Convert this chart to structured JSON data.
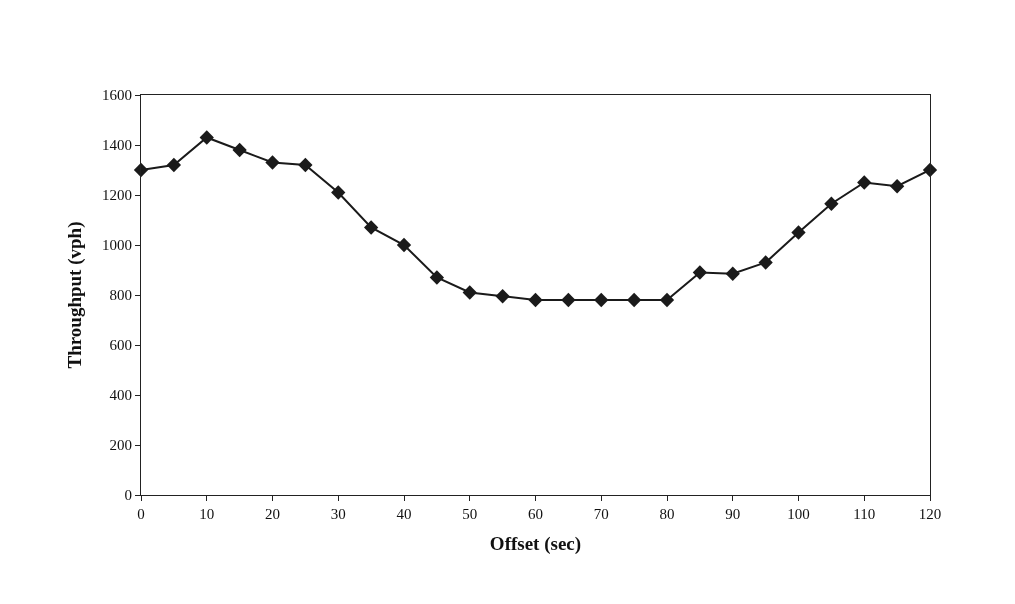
{
  "chart_data": {
    "type": "line",
    "xlabel": "Offset (sec)",
    "ylabel": "Throughput (vph)",
    "x": [
      0,
      5,
      10,
      15,
      20,
      25,
      30,
      35,
      40,
      45,
      50,
      55,
      60,
      65,
      70,
      75,
      80,
      85,
      90,
      95,
      100,
      105,
      110,
      115,
      120
    ],
    "series": [
      {
        "color": "#1a1a1a",
        "values": [
          1300,
          1320,
          1430,
          1380,
          1330,
          1320,
          1210,
          1070,
          1000,
          870,
          810,
          795,
          780,
          780,
          780,
          780,
          780,
          890,
          885,
          930,
          1050,
          1165,
          1250,
          1235,
          1300
        ]
      }
    ],
    "xlim": [
      0,
      120
    ],
    "xticks": [
      0,
      10,
      20,
      30,
      40,
      50,
      60,
      70,
      80,
      90,
      100,
      110,
      120
    ],
    "ylim": [
      0,
      1600
    ],
    "yticks": [
      0,
      200,
      400,
      600,
      800,
      1000,
      1200,
      1400,
      1600
    ],
    "grid": false,
    "marker": "diamond",
    "line_style": "solid"
  }
}
